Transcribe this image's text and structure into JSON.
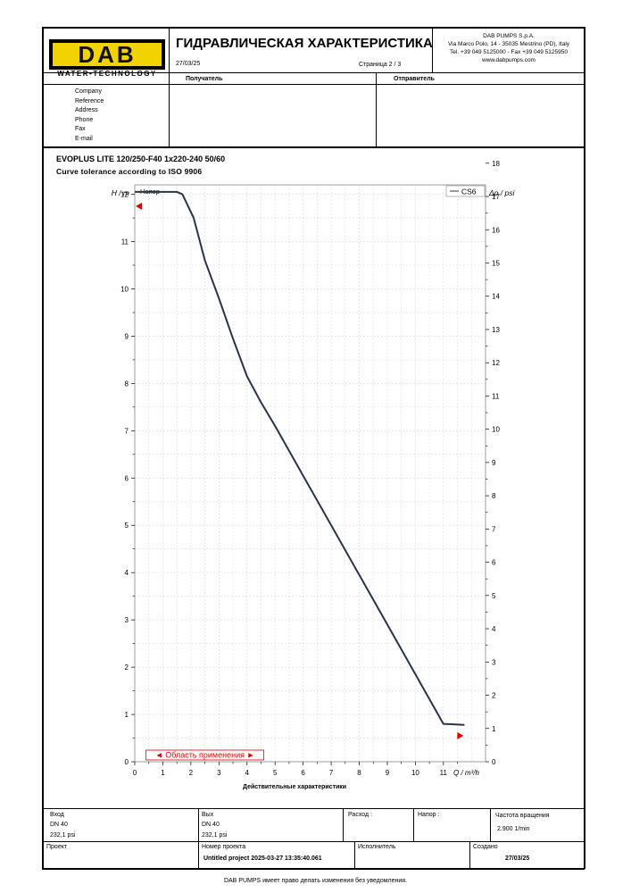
{
  "header": {
    "logo_text": "DAB",
    "logo_subtext": "WATER•TECHNOLOGY",
    "title": "ГИДРАВЛИЧЕСКАЯ ХАРАКТЕРИСТИКА",
    "date": "27/03/25",
    "page": "Страница 2 / 3",
    "company": [
      "DAB PUMPS S.p.A.",
      "Via Marco Polo, 14 - 35035 Mestrino (PD), Italy",
      "Tel. +39 049 5125000 - Fax +39 049 5125950",
      "www.dabpumps.com"
    ]
  },
  "recipient_header": "Получатель",
  "sender_header": "Отправитель",
  "contact_fields": [
    "Company",
    "Reference",
    "Address",
    "Phone",
    "Fax",
    "E-mail"
  ],
  "product": {
    "model": "EVOPLUS LITE 120/250-F40 1x220-240 50/60",
    "tolerance": "Curve tolerance according to ISO 9906"
  },
  "chart_data": {
    "type": "line",
    "title": "",
    "panel_label": "Напор",
    "xlabel": "Q / m³/h",
    "ylabel": "H / m",
    "y2label": "Δp / psi",
    "xlabel_bottom": "Действительные характеристики",
    "xlim": [
      0,
      12.5
    ],
    "ylim": [
      0,
      12.2
    ],
    "y2lim": [
      0,
      17.35
    ],
    "x_ticks": [
      0,
      1,
      2,
      3,
      4,
      5,
      6,
      7,
      8,
      9,
      10,
      11
    ],
    "y_ticks": [
      0,
      1,
      2,
      3,
      4,
      5,
      6,
      7,
      8,
      9,
      10,
      11,
      12
    ],
    "y2_ticks": [
      0,
      1,
      2,
      3,
      4,
      5,
      6,
      7,
      8,
      9,
      10,
      11,
      12,
      13,
      14,
      15,
      16,
      17,
      18
    ],
    "grid": true,
    "legend": "top-right",
    "series": [
      {
        "name": "CS6",
        "color": "#2b3447",
        "x": [
          0,
          0.5,
          1.0,
          1.5,
          1.7,
          1.9,
          2.1,
          2.3,
          2.5,
          3.0,
          3.5,
          4.0,
          4.5,
          5.0,
          6.0,
          7.0,
          8.0,
          9.0,
          10.0,
          11.0,
          11.75
        ],
        "y": [
          12.05,
          12.05,
          12.05,
          12.05,
          12.0,
          11.75,
          11.5,
          11.05,
          10.6,
          9.8,
          8.95,
          8.15,
          7.6,
          7.1,
          6.05,
          5.0,
          3.95,
          2.9,
          1.85,
          0.8,
          0.78
        ]
      }
    ],
    "markers": [
      {
        "axis": "left",
        "y": 11.75,
        "color": "#e00000"
      },
      {
        "axis": "right",
        "y": 0.55,
        "color": "#e00000"
      }
    ],
    "range_label": "◄ Область применения ►",
    "range_x": [
      0.4,
      4.6
    ]
  },
  "footer": {
    "inlet_label": "Вход",
    "inlet_dn": "DN 40",
    "inlet_psi": "232,1 psi",
    "outlet_label": "Вых",
    "outlet_dn": "DN 40",
    "outlet_psi": "232,1 psi",
    "flow_label": "Расход :",
    "head_label": "Напор :",
    "speed_label": "Частота вращения",
    "speed_value": "2.900 1/min",
    "project_label": "Проект",
    "project_number_label": "Номер проекта",
    "project_number_value": "Untitled project 2025-03-27 13:35:40.061",
    "executor_label": "Исполнитель",
    "created_label": "Создано",
    "created_value": "27/03/25"
  },
  "disclaimer": "DAB PUMPS имеет право делать изменения без уведомления."
}
